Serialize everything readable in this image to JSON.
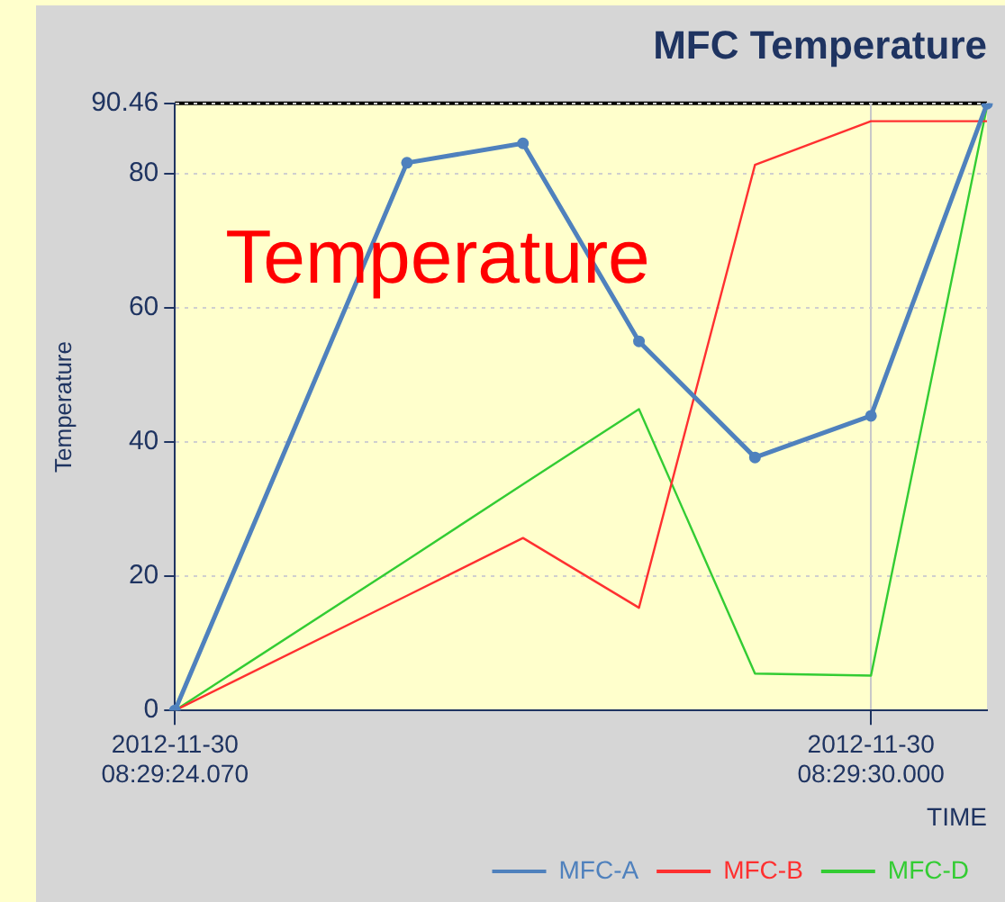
{
  "chart_data": {
    "type": "line",
    "title": "MFC Temperature",
    "xlabel": "TIME",
    "ylabel": "Temperature",
    "annotations": [
      "Temperature"
    ],
    "categories": [
      "2012-11-30 08:29:24.070",
      null,
      null,
      null,
      null,
      null,
      "2012-11-30 08:29:30.000",
      null
    ],
    "ylim": [
      0,
      90.46
    ],
    "yticks": [
      0,
      20,
      40,
      60,
      80,
      90.46
    ],
    "series": [
      {
        "name": "MFC-A",
        "color": "#4f81bd",
        "marker": "circle",
        "values": [
          0,
          null,
          81.6,
          84.5,
          55,
          37.7,
          43.9,
          90.4
        ]
      },
      {
        "name": "MFC-B",
        "color": "#ff3030",
        "values": [
          0,
          null,
          17.1,
          25.7,
          15.3,
          81.3,
          87.8,
          87.8
        ]
      },
      {
        "name": "MFC-D",
        "color": "#33cc33",
        "values": [
          0,
          null,
          22.4,
          33.7,
          44.9,
          5.5,
          5.2,
          90
        ]
      }
    ],
    "grid": true,
    "legend": "bottom right",
    "marker": "none"
  }
}
